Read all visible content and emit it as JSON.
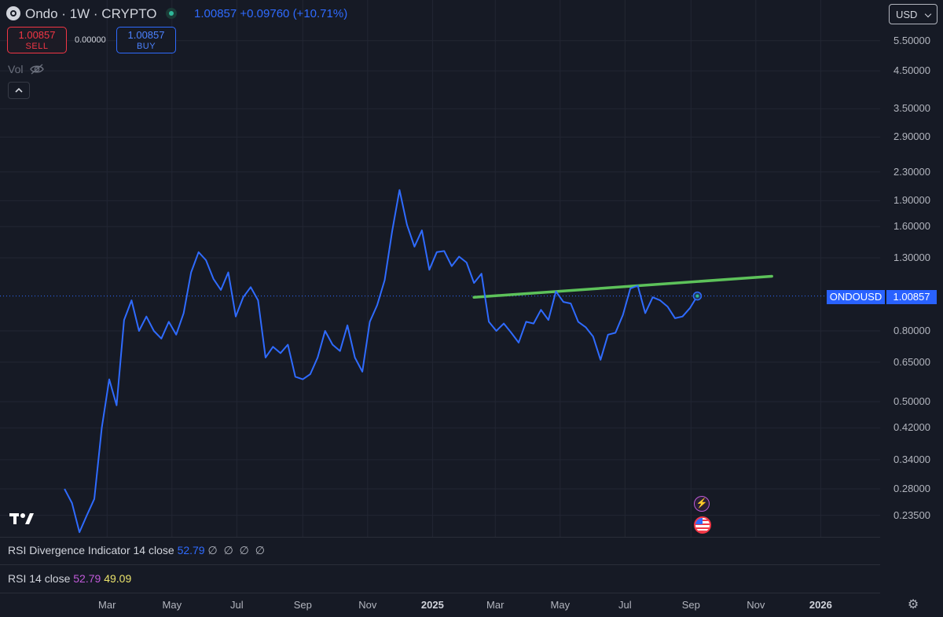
{
  "header": {
    "title": "Ondo · 1W · CRYPTO",
    "price": "1.00857",
    "change": "+0.09760",
    "change_pct": "(+10.71%)"
  },
  "trade": {
    "sell_price": "1.00857",
    "sell_label": "SELL",
    "spread": "0.00000",
    "buy_price": "1.00857",
    "buy_label": "BUY"
  },
  "vol_label": "Vol",
  "currency": "USD",
  "price_tag": {
    "symbol": "ONDOUSD",
    "price": "1.00857"
  },
  "indicators": {
    "rsi_div": {
      "label": "RSI Divergence Indicator 14 close",
      "value": "52.79",
      "nulls": "∅ ∅ ∅ ∅"
    },
    "rsi": {
      "label": "RSI 14 close",
      "value1": "52.79",
      "value2": "49.09"
    }
  },
  "tv_logo": "17",
  "icons": {
    "collapse": "chevron-up-icon",
    "eye": "eye-slash-icon",
    "settings": "gear-icon",
    "event1": "lightning-icon",
    "event2": "us-flag-icon"
  },
  "colors": {
    "background": "#161a25",
    "price_line": "#2f6bff",
    "trendline": "#5dc25a",
    "sell": "#f23645",
    "buy": "#2962ff"
  },
  "chart_data": {
    "type": "line",
    "y_scale": "log",
    "ylim": [
      0.21,
      6.2
    ],
    "y_ticks": [
      "5.50000",
      "4.50000",
      "3.50000",
      "2.90000",
      "2.30000",
      "1.90000",
      "1.60000",
      "1.30000",
      "0.80000",
      "0.65000",
      "0.50000",
      "0.42000",
      "0.34000",
      "0.28000",
      "0.23500"
    ],
    "x_ticks": [
      "Mar",
      "May",
      "Jul",
      "Sep",
      "Nov",
      "2025",
      "Mar",
      "May",
      "Jul",
      "Sep",
      "Nov",
      "2026"
    ],
    "x_start": "2024-01-15",
    "x_end": "2026-01-31",
    "grid": true,
    "series": [
      {
        "values": [
          [
            "2024-01-21",
            0.28
          ],
          [
            "2024-01-28",
            0.255
          ],
          [
            "2024-02-04",
            0.21
          ],
          [
            "2024-02-11",
            0.235
          ],
          [
            "2024-02-18",
            0.262
          ],
          [
            "2024-02-25",
            0.42
          ],
          [
            "2024-03-03",
            0.58
          ],
          [
            "2024-03-10",
            0.488
          ],
          [
            "2024-03-17",
            0.86
          ],
          [
            "2024-03-24",
            0.98
          ],
          [
            "2024-03-31",
            0.8
          ],
          [
            "2024-04-07",
            0.88
          ],
          [
            "2024-04-14",
            0.8
          ],
          [
            "2024-04-21",
            0.76
          ],
          [
            "2024-04-28",
            0.85
          ],
          [
            "2024-05-05",
            0.78
          ],
          [
            "2024-05-12",
            0.9
          ],
          [
            "2024-05-19",
            1.18
          ],
          [
            "2024-05-26",
            1.35
          ],
          [
            "2024-06-02",
            1.28
          ],
          [
            "2024-06-09",
            1.13
          ],
          [
            "2024-06-16",
            1.05
          ],
          [
            "2024-06-23",
            1.18
          ],
          [
            "2024-06-30",
            0.88
          ],
          [
            "2024-07-07",
            1.0
          ],
          [
            "2024-07-14",
            1.07
          ],
          [
            "2024-07-21",
            0.98
          ],
          [
            "2024-07-28",
            0.67
          ],
          [
            "2024-08-04",
            0.72
          ],
          [
            "2024-08-11",
            0.69
          ],
          [
            "2024-08-18",
            0.73
          ],
          [
            "2024-08-25",
            0.59
          ],
          [
            "2024-09-01",
            0.58
          ],
          [
            "2024-09-08",
            0.6
          ],
          [
            "2024-09-15",
            0.67
          ],
          [
            "2024-09-22",
            0.8
          ],
          [
            "2024-09-29",
            0.73
          ],
          [
            "2024-10-06",
            0.7
          ],
          [
            "2024-10-13",
            0.83
          ],
          [
            "2024-10-20",
            0.67
          ],
          [
            "2024-10-27",
            0.61
          ],
          [
            "2024-11-03",
            0.85
          ],
          [
            "2024-11-10",
            0.95
          ],
          [
            "2024-11-17",
            1.12
          ],
          [
            "2024-11-24",
            1.55
          ],
          [
            "2024-12-01",
            2.04
          ],
          [
            "2024-12-08",
            1.62
          ],
          [
            "2024-12-15",
            1.4
          ],
          [
            "2024-12-22",
            1.56
          ],
          [
            "2024-12-29",
            1.2
          ],
          [
            "2025-01-05",
            1.35
          ],
          [
            "2025-01-12",
            1.36
          ],
          [
            "2025-01-19",
            1.23
          ],
          [
            "2025-01-26",
            1.31
          ],
          [
            "2025-02-02",
            1.26
          ],
          [
            "2025-02-09",
            1.1
          ],
          [
            "2025-02-16",
            1.17
          ],
          [
            "2025-02-23",
            0.85
          ],
          [
            "2025-03-02",
            0.8
          ],
          [
            "2025-03-09",
            0.84
          ],
          [
            "2025-03-16",
            0.79
          ],
          [
            "2025-03-23",
            0.74
          ],
          [
            "2025-03-30",
            0.85
          ],
          [
            "2025-04-06",
            0.84
          ],
          [
            "2025-04-13",
            0.92
          ],
          [
            "2025-04-20",
            0.86
          ],
          [
            "2025-04-27",
            1.04
          ],
          [
            "2025-05-04",
            0.97
          ],
          [
            "2025-05-11",
            0.96
          ],
          [
            "2025-05-18",
            0.85
          ],
          [
            "2025-05-25",
            0.82
          ],
          [
            "2025-06-01",
            0.77
          ],
          [
            "2025-06-08",
            0.66
          ],
          [
            "2025-06-15",
            0.78
          ],
          [
            "2025-06-22",
            0.79
          ],
          [
            "2025-06-29",
            0.89
          ],
          [
            "2025-07-06",
            1.06
          ],
          [
            "2025-07-13",
            1.08
          ],
          [
            "2025-07-20",
            0.9
          ],
          [
            "2025-07-27",
            1.0
          ],
          [
            "2025-08-03",
            0.98
          ],
          [
            "2025-08-10",
            0.94
          ],
          [
            "2025-08-17",
            0.87
          ],
          [
            "2025-08-24",
            0.88
          ],
          [
            "2025-08-31",
            0.93
          ],
          [
            "2025-09-07",
            1.00857
          ]
        ]
      }
    ],
    "trendline": [
      [
        "2025-02-09",
        1.0
      ],
      [
        "2025-11-16",
        1.15
      ]
    ],
    "last_price": 1.00857
  }
}
